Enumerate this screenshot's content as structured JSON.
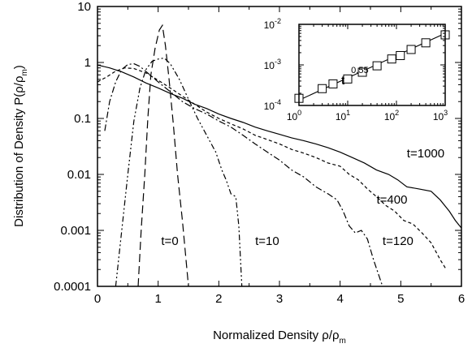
{
  "chart_data": [
    {
      "type": "line",
      "xlabel": "Normalized Density ρ/ρ",
      "xlabel_sub": "m",
      "ylabel": "Distribution of Density P(ρ/ρ",
      "ylabel_sub": "m",
      "ylabel_tail": ")",
      "xlim": [
        0,
        6
      ],
      "ylim": [
        0.0001,
        10
      ],
      "yscale": "log",
      "xticks": [
        0,
        1,
        2,
        3,
        4,
        5,
        6
      ],
      "xtick_labels": [
        "0",
        "1",
        "2",
        "3",
        "4",
        "5",
        "6"
      ],
      "yticks": [
        0.0001,
        0.001,
        0.01,
        0.1,
        1,
        10
      ],
      "ytick_labels": [
        "0.0001",
        "0.001",
        "0.01",
        "0.1",
        "1",
        "10"
      ],
      "grid": false,
      "series": [
        {
          "name": "t=0",
          "style": "long-dash",
          "points": [
            [
              0.67,
              0.0001
            ],
            [
              0.72,
              0.001
            ],
            [
              0.78,
              0.01
            ],
            [
              0.83,
              0.1
            ],
            [
              0.88,
              0.6
            ],
            [
              0.95,
              1.8
            ],
            [
              1.02,
              3.8
            ],
            [
              1.07,
              4.6
            ],
            [
              1.12,
              2.0
            ],
            [
              1.18,
              0.5
            ],
            [
              1.25,
              0.08
            ],
            [
              1.32,
              0.01
            ],
            [
              1.4,
              0.0015
            ],
            [
              1.5,
              0.0001
            ]
          ]
        },
        {
          "name": "t=10",
          "style": "dash-dot-dot",
          "points": [
            [
              0.3,
              0.0001
            ],
            [
              0.4,
              0.001
            ],
            [
              0.5,
              0.01
            ],
            [
              0.6,
              0.09
            ],
            [
              0.7,
              0.35
            ],
            [
              0.8,
              0.75
            ],
            [
              0.9,
              1.05
            ],
            [
              1.0,
              1.15
            ],
            [
              1.1,
              1.2
            ],
            [
              1.2,
              0.95
            ],
            [
              1.35,
              0.5
            ],
            [
              1.5,
              0.22
            ],
            [
              1.65,
              0.1
            ],
            [
              1.8,
              0.05
            ],
            [
              1.95,
              0.025
            ],
            [
              2.05,
              0.012
            ],
            [
              2.12,
              0.008
            ],
            [
              2.2,
              0.0045
            ],
            [
              2.28,
              0.004
            ],
            [
              2.33,
              0.0012
            ],
            [
              2.38,
              0.0001
            ]
          ]
        },
        {
          "name": "t=120",
          "style": "dash-dot",
          "points": [
            [
              0.12,
              0.06
            ],
            [
              0.2,
              0.2
            ],
            [
              0.3,
              0.45
            ],
            [
              0.4,
              0.75
            ],
            [
              0.5,
              0.92
            ],
            [
              0.6,
              0.95
            ],
            [
              0.7,
              0.85
            ],
            [
              0.85,
              0.62
            ],
            [
              1.0,
              0.45
            ],
            [
              1.2,
              0.3
            ],
            [
              1.4,
              0.2
            ],
            [
              1.6,
              0.15
            ],
            [
              1.8,
              0.12
            ],
            [
              2.0,
              0.09
            ],
            [
              2.2,
              0.07
            ],
            [
              2.4,
              0.05
            ],
            [
              2.6,
              0.035
            ],
            [
              2.8,
              0.025
            ],
            [
              3.0,
              0.018
            ],
            [
              3.2,
              0.012
            ],
            [
              3.4,
              0.009
            ],
            [
              3.6,
              0.006
            ],
            [
              3.8,
              0.0045
            ],
            [
              3.95,
              0.0035
            ],
            [
              4.05,
              0.0022
            ],
            [
              4.15,
              0.0012
            ],
            [
              4.25,
              0.0009
            ],
            [
              4.35,
              0.001
            ],
            [
              4.45,
              0.0007
            ],
            [
              4.55,
              0.0003
            ],
            [
              4.7,
              0.0001
            ]
          ]
        },
        {
          "name": "t=400",
          "style": "short-dash",
          "points": [
            [
              0.0,
              0.45
            ],
            [
              0.15,
              0.55
            ],
            [
              0.3,
              0.7
            ],
            [
              0.45,
              0.8
            ],
            [
              0.6,
              0.78
            ],
            [
              0.8,
              0.65
            ],
            [
              1.0,
              0.48
            ],
            [
              1.2,
              0.35
            ],
            [
              1.4,
              0.25
            ],
            [
              1.6,
              0.18
            ],
            [
              1.8,
              0.13
            ],
            [
              2.0,
              0.1
            ],
            [
              2.2,
              0.08
            ],
            [
              2.4,
              0.065
            ],
            [
              2.6,
              0.05
            ],
            [
              2.8,
              0.042
            ],
            [
              3.0,
              0.035
            ],
            [
              3.2,
              0.028
            ],
            [
              3.4,
              0.024
            ],
            [
              3.6,
              0.02
            ],
            [
              3.8,
              0.016
            ],
            [
              4.0,
              0.014
            ],
            [
              4.15,
              0.01
            ],
            [
              4.3,
              0.008
            ],
            [
              4.45,
              0.0055
            ],
            [
              4.6,
              0.004
            ],
            [
              4.75,
              0.0028
            ],
            [
              4.9,
              0.0022
            ],
            [
              5.05,
              0.0015
            ],
            [
              5.2,
              0.0013
            ],
            [
              5.35,
              0.0009
            ],
            [
              5.5,
              0.0006
            ],
            [
              5.65,
              0.0003
            ],
            [
              5.75,
              0.0002
            ]
          ]
        },
        {
          "name": "t=1000",
          "style": "solid",
          "points": [
            [
              0.0,
              0.9
            ],
            [
              0.2,
              0.8
            ],
            [
              0.4,
              0.68
            ],
            [
              0.6,
              0.55
            ],
            [
              0.8,
              0.43
            ],
            [
              1.0,
              0.35
            ],
            [
              1.2,
              0.28
            ],
            [
              1.4,
              0.23
            ],
            [
              1.6,
              0.18
            ],
            [
              1.8,
              0.15
            ],
            [
              2.0,
              0.12
            ],
            [
              2.2,
              0.1
            ],
            [
              2.4,
              0.085
            ],
            [
              2.6,
              0.07
            ],
            [
              2.8,
              0.06
            ],
            [
              3.0,
              0.052
            ],
            [
              3.2,
              0.045
            ],
            [
              3.4,
              0.04
            ],
            [
              3.6,
              0.035
            ],
            [
              3.8,
              0.03
            ],
            [
              4.0,
              0.025
            ],
            [
              4.2,
              0.02
            ],
            [
              4.4,
              0.016
            ],
            [
              4.6,
              0.012
            ],
            [
              4.8,
              0.01
            ],
            [
              4.95,
              0.008
            ],
            [
              5.1,
              0.006
            ],
            [
              5.3,
              0.0055
            ],
            [
              5.5,
              0.005
            ],
            [
              5.65,
              0.0035
            ],
            [
              5.8,
              0.0022
            ],
            [
              5.9,
              0.0015
            ],
            [
              6.0,
              0.0011
            ]
          ]
        }
      ],
      "annotations": [
        {
          "text": "t=1000",
          "x": 5.1,
          "y": 0.02
        },
        {
          "text": "t=400",
          "x": 4.6,
          "y": 0.003
        },
        {
          "text": "t=120",
          "x": 4.7,
          "y": 0.00055
        },
        {
          "text": "t=10",
          "x": 2.6,
          "y": 0.00055
        },
        {
          "text": "t=0",
          "x": 1.05,
          "y": 0.00055
        }
      ]
    },
    {
      "type": "scatter",
      "xscale": "log",
      "yscale": "log",
      "xlim": [
        1,
        1000
      ],
      "ylim": [
        0.0001,
        0.01
      ],
      "xticks": [
        1,
        10,
        100,
        1000
      ],
      "xtick_labels": [
        {
          "base": "10",
          "exp": "0"
        },
        {
          "base": "10",
          "exp": "1"
        },
        {
          "base": "10",
          "exp": "2"
        },
        {
          "base": "10",
          "exp": "3"
        }
      ],
      "yticks": [
        0.0001,
        0.001,
        0.01
      ],
      "ytick_labels": [
        {
          "base": "10",
          "exp": "-4"
        },
        {
          "base": "10",
          "exp": "-3"
        },
        {
          "base": "10",
          "exp": "-2"
        }
      ],
      "annotation": {
        "base": "t",
        "exp": "0.55"
      },
      "markers": "open-square",
      "points": [
        [
          1,
          0.00015
        ],
        [
          3,
          0.00026
        ],
        [
          5,
          0.00034
        ],
        [
          10,
          0.00045
        ],
        [
          20,
          0.00066
        ],
        [
          40,
          0.00095
        ],
        [
          80,
          0.0014
        ],
        [
          120,
          0.0017
        ],
        [
          200,
          0.0024
        ],
        [
          400,
          0.0035
        ],
        [
          1000,
          0.0055
        ]
      ],
      "fit": {
        "exponent": 0.55,
        "points": [
          [
            1,
            0.000135
          ],
          [
            1000,
            0.006
          ]
        ]
      }
    }
  ]
}
